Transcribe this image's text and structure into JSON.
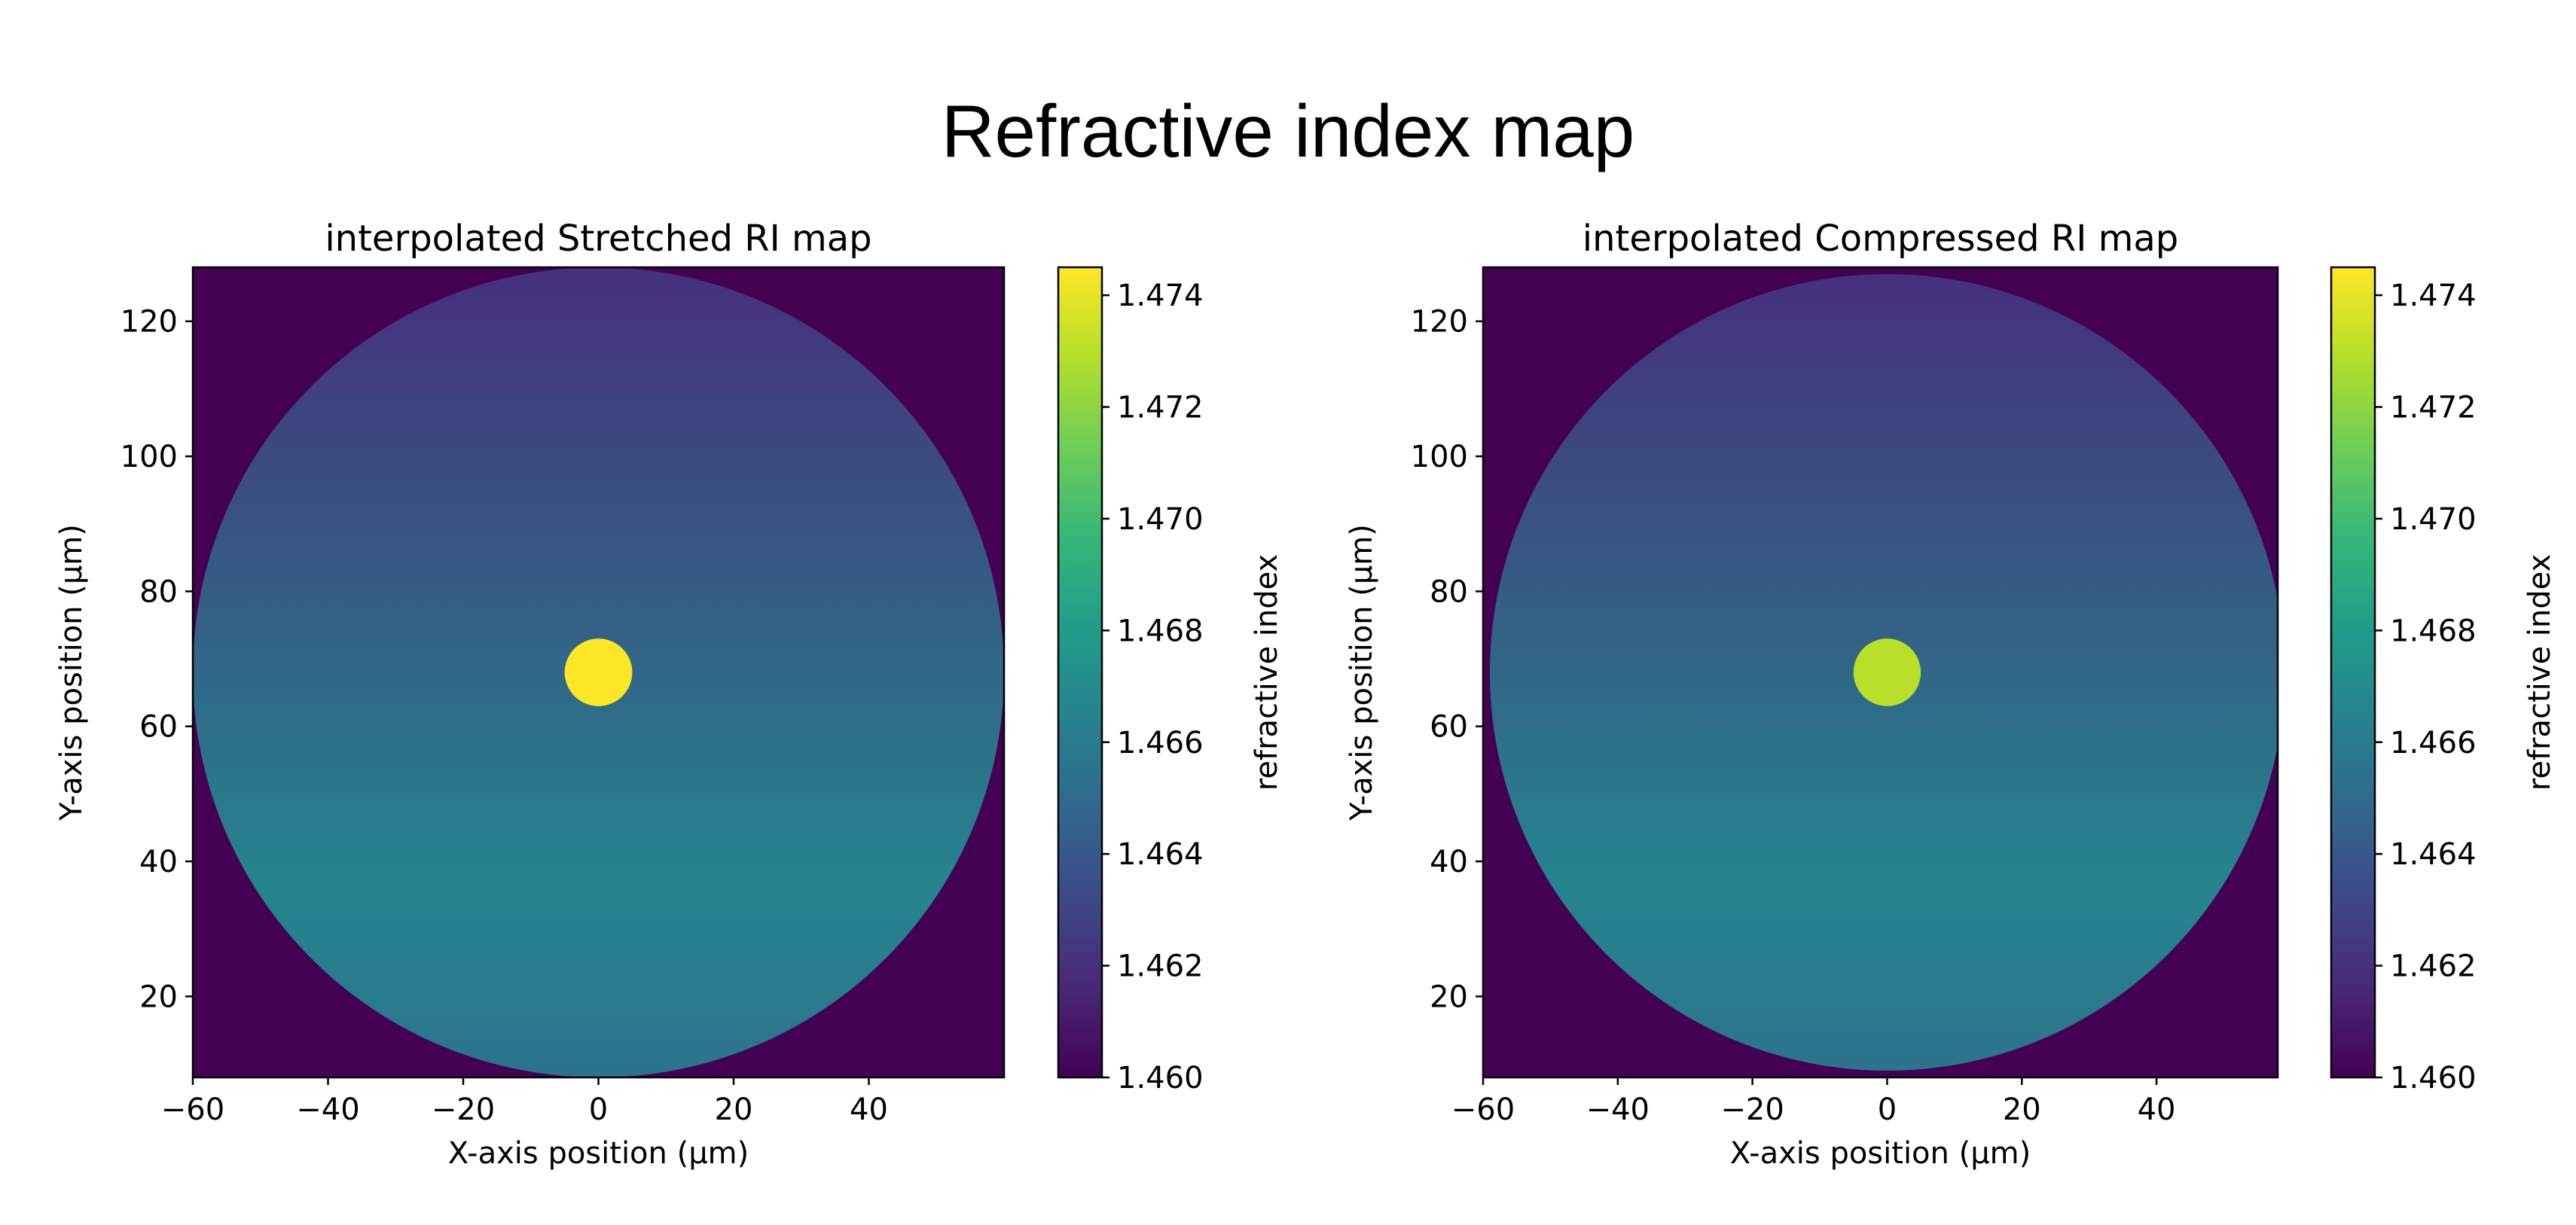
{
  "page": {
    "title": "Refractive index map"
  },
  "colormap": {
    "name": "viridis",
    "stops": [
      "#440154",
      "#482878",
      "#3e4989",
      "#31688e",
      "#26828e",
      "#1f9e89",
      "#35b779",
      "#6ece58",
      "#b5de2b",
      "#fde725"
    ]
  },
  "chart_data": [
    {
      "type": "heatmap",
      "title": "interpolated Stretched RI map",
      "xlabel": "X-axis position (μm)",
      "ylabel": "Y-axis position (μm)",
      "xlim": [
        -60,
        60
      ],
      "ylim": [
        8,
        128
      ],
      "xticks": [
        -60,
        -40,
        -20,
        0,
        20,
        40
      ],
      "xtick_labels": [
        "−60",
        "−40",
        "−20",
        "0",
        "20",
        "40"
      ],
      "yticks": [
        20,
        40,
        60,
        80,
        100,
        120
      ],
      "ytick_labels": [
        "20",
        "40",
        "60",
        "80",
        "100",
        "120"
      ],
      "background_value": 1.46,
      "cladding": {
        "center": [
          0,
          68
        ],
        "radius": 60,
        "value_top": 1.462,
        "value_bottom": 1.4655,
        "peak_value": 1.4666,
        "peak_y": 36
      },
      "core": {
        "center": [
          0,
          68
        ],
        "radius": 5,
        "value": 1.4745
      },
      "colorbar": {
        "label": "refractive index",
        "range": [
          1.46,
          1.4745
        ],
        "ticks": [
          1.46,
          1.462,
          1.464,
          1.466,
          1.468,
          1.47,
          1.472,
          1.474
        ],
        "tick_labels": [
          "1.460",
          "1.462",
          "1.464",
          "1.466",
          "1.468",
          "1.470",
          "1.472",
          "1.474"
        ]
      }
    },
    {
      "type": "heatmap",
      "title": "interpolated Compressed RI map",
      "xlabel": "X-axis position (μm)",
      "ylabel": "Y-axis position (μm)",
      "xlim": [
        -60,
        58
      ],
      "ylim": [
        8,
        128
      ],
      "xticks": [
        -60,
        -40,
        -20,
        0,
        20,
        40
      ],
      "xtick_labels": [
        "−60",
        "−40",
        "−20",
        "0",
        "20",
        "40"
      ],
      "yticks": [
        20,
        40,
        60,
        80,
        100,
        120
      ],
      "ytick_labels": [
        "20",
        "40",
        "60",
        "80",
        "100",
        "120"
      ],
      "background_value": 1.46,
      "cladding": {
        "center": [
          0,
          68
        ],
        "radius": 59,
        "value_top": 1.462,
        "value_bottom": 1.4655,
        "peak_value": 1.4666,
        "peak_y": 36
      },
      "core": {
        "center": [
          0,
          68
        ],
        "radius": 5,
        "value": 1.473
      },
      "colorbar": {
        "label": "refractive index",
        "range": [
          1.46,
          1.4745
        ],
        "ticks": [
          1.46,
          1.462,
          1.464,
          1.466,
          1.468,
          1.47,
          1.472,
          1.474
        ],
        "tick_labels": [
          "1.460",
          "1.462",
          "1.464",
          "1.466",
          "1.468",
          "1.470",
          "1.472",
          "1.474"
        ]
      }
    }
  ]
}
